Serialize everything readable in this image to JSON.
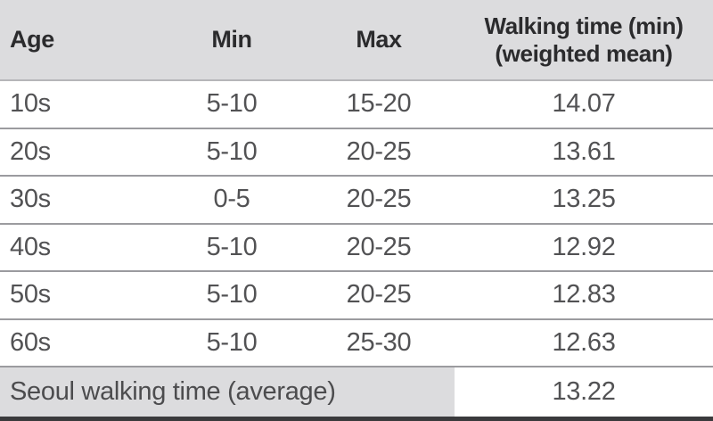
{
  "table": {
    "columns": [
      "Age",
      "Min",
      "Max",
      "Walking time (min)\n(weighted mean)"
    ],
    "rows": [
      [
        "10s",
        "5-10",
        "15-20",
        "14.07"
      ],
      [
        "20s",
        "5-10",
        "20-25",
        "13.61"
      ],
      [
        "30s",
        "0-5",
        "20-25",
        "13.25"
      ],
      [
        "40s",
        "5-10",
        "20-25",
        "12.92"
      ],
      [
        "50s",
        "5-10",
        "20-25",
        "12.83"
      ],
      [
        "60s",
        "5-10",
        "25-30",
        "12.63"
      ]
    ],
    "footer": {
      "label": "Seoul walking time (average)",
      "value": "13.22"
    }
  },
  "colors": {
    "header_background": "#dcdcde",
    "footer_label_background": "#dcdcde",
    "row_separator": "#9b9b9f",
    "header_separator": "#b6b6b9",
    "bottom_border": "#3a3a3c",
    "header_text": "#2b2b2d",
    "body_text": "#525254"
  },
  "chart_data": {
    "type": "table",
    "title": "",
    "columns": [
      "Age",
      "Min",
      "Max",
      "Walking time (min) (weighted mean)"
    ],
    "rows": [
      {
        "age": "10s",
        "min": "5-10",
        "max": "15-20",
        "weighted_mean": 14.07
      },
      {
        "age": "20s",
        "min": "5-10",
        "max": "20-25",
        "weighted_mean": 13.61
      },
      {
        "age": "30s",
        "min": "0-5",
        "max": "20-25",
        "weighted_mean": 13.25
      },
      {
        "age": "40s",
        "min": "5-10",
        "max": "20-25",
        "weighted_mean": 12.92
      },
      {
        "age": "50s",
        "min": "5-10",
        "max": "20-25",
        "weighted_mean": 12.83
      },
      {
        "age": "60s",
        "min": "5-10",
        "max": "25-30",
        "weighted_mean": 12.63
      }
    ],
    "summary": {
      "label": "Seoul walking time (average)",
      "value": 13.22
    }
  }
}
